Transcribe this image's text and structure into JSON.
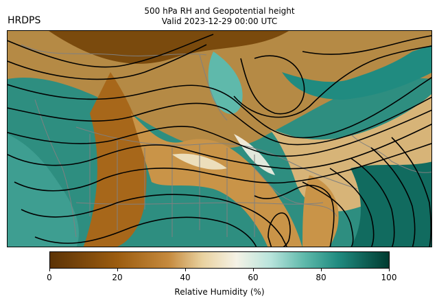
{
  "header": {
    "model": "HRDPS",
    "title_line1": "500 hPa RH and Geopotential height",
    "title_line2": "Valid 2023-12-29 00:00 UTC"
  },
  "colorbar": {
    "label": "Relative Humidity (%)",
    "min": 0,
    "max": 100,
    "ticks": [
      "0",
      "20",
      "40",
      "60",
      "80",
      "100"
    ],
    "stops": [
      "#5c3306",
      "#9c5d10",
      "#c58a3e",
      "#e9d2a0",
      "#f5f2e6",
      "#b9e4dc",
      "#5fb9ab",
      "#208b80",
      "#003b30"
    ]
  },
  "map": {
    "field": "Relative Humidity",
    "contours": "Geopotential height",
    "contour_color": "#000000",
    "border_color": "#808080"
  }
}
